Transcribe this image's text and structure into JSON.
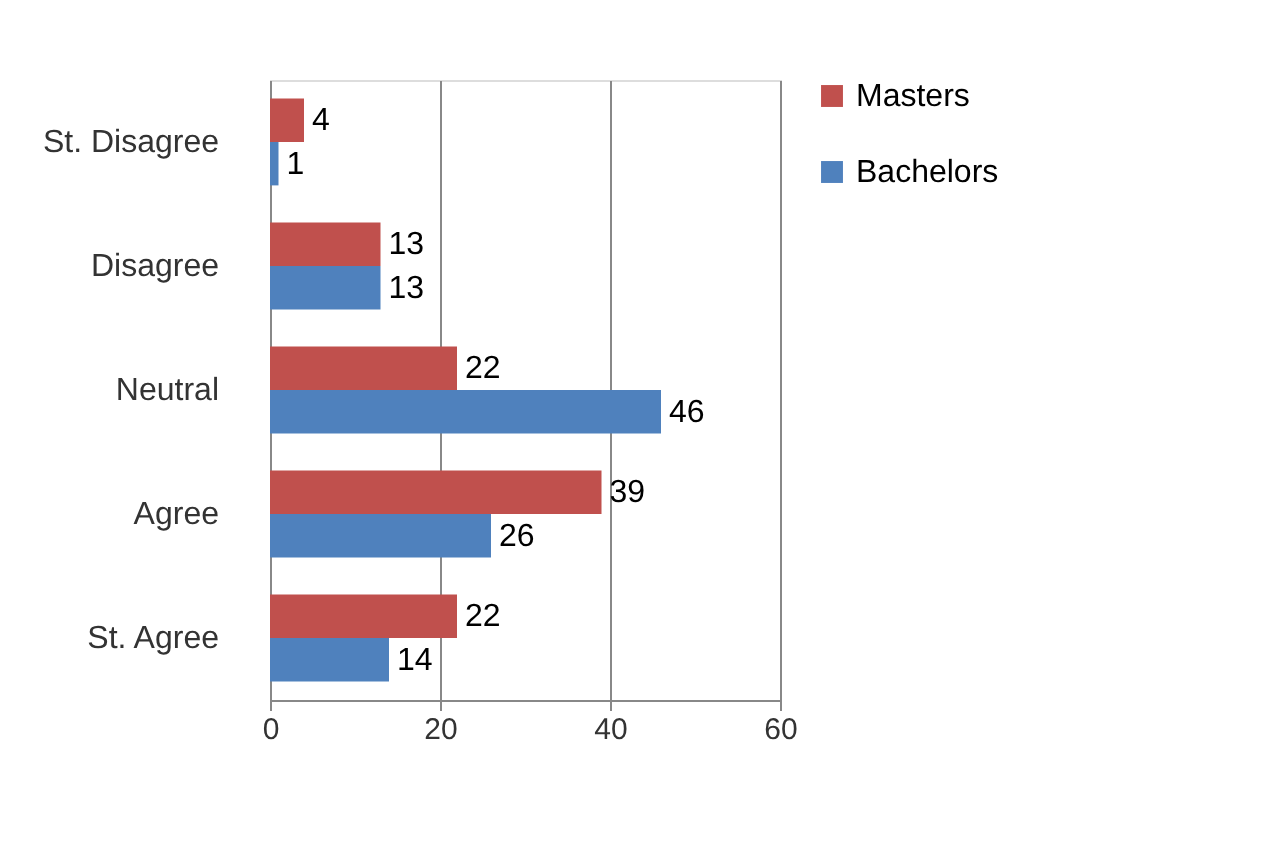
{
  "chart_data": {
    "type": "bar",
    "orientation": "horizontal",
    "categories": [
      "St. Disagree",
      "Disagree",
      "Neutral",
      "Agree",
      "St. Agree"
    ],
    "series": [
      {
        "name": "Masters",
        "color": "#c0504d",
        "values": [
          4,
          13,
          22,
          39,
          22
        ]
      },
      {
        "name": "Bachelors",
        "color": "#4f81bd",
        "values": [
          1,
          13,
          46,
          26,
          14
        ]
      }
    ],
    "xlim": [
      0,
      60
    ],
    "xticks": [
      0,
      20,
      40,
      60
    ],
    "grid": "x",
    "legend": "right",
    "data_labels": true
  }
}
